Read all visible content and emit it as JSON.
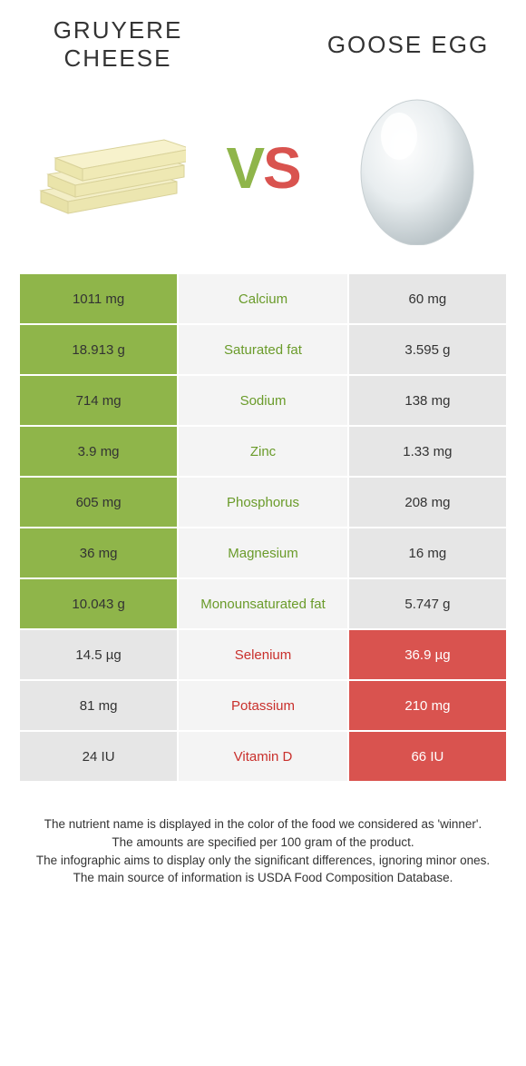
{
  "left": {
    "title": "GRUYERE CHEESE",
    "color": "#8fb54a"
  },
  "right": {
    "title": "GOOSE EGG",
    "color": "#d9534f"
  },
  "vs": {
    "v": "V",
    "s": "S"
  },
  "colors": {
    "green_bg": "#8fb54a",
    "red_bg": "#d9534f",
    "grey_bg": "#e6e6e6",
    "mid_bg": "#f4f4f4",
    "green_txt": "#6a9b2a",
    "red_txt": "#c9302c"
  },
  "rows": [
    {
      "name": "Calcium",
      "left": "1011 mg",
      "right": "60 mg",
      "winner": "left"
    },
    {
      "name": "Saturated fat",
      "left": "18.913 g",
      "right": "3.595 g",
      "winner": "left"
    },
    {
      "name": "Sodium",
      "left": "714 mg",
      "right": "138 mg",
      "winner": "left"
    },
    {
      "name": "Zinc",
      "left": "3.9 mg",
      "right": "1.33 mg",
      "winner": "left"
    },
    {
      "name": "Phosphorus",
      "left": "605 mg",
      "right": "208 mg",
      "winner": "left"
    },
    {
      "name": "Magnesium",
      "left": "36 mg",
      "right": "16 mg",
      "winner": "left"
    },
    {
      "name": "Monounsaturated fat",
      "left": "10.043 g",
      "right": "5.747 g",
      "winner": "left"
    },
    {
      "name": "Selenium",
      "left": "14.5 µg",
      "right": "36.9 µg",
      "winner": "right"
    },
    {
      "name": "Potassium",
      "left": "81 mg",
      "right": "210 mg",
      "winner": "right"
    },
    {
      "name": "Vitamin D",
      "left": "24 IU",
      "right": "66 IU",
      "winner": "right"
    }
  ],
  "notes": {
    "l1": "The nutrient name is displayed in the color of the food we considered as 'winner'.",
    "l2": "The amounts are specified per 100 gram of the product.",
    "l3": "The infographic aims to display only the significant differences, ignoring minor ones.",
    "l4": "The main source of information is USDA Food Composition Database."
  }
}
